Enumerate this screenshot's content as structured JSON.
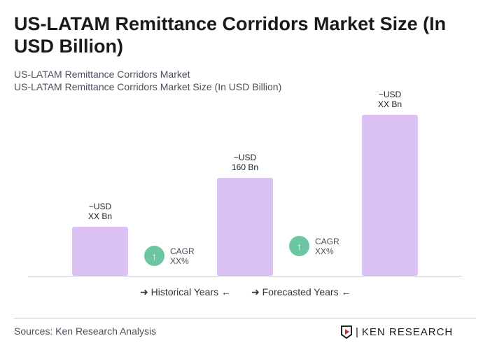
{
  "title": "US-LATAM Remittance Corridors Market Size (In USD Billion)",
  "subtitle1": "US-LATAM Remittance Corridors Market",
  "subtitle2": "US-LATAM Remittance Corridors Market Size (In USD Billion)",
  "chart_data": {
    "type": "bar",
    "categories": [
      "",
      "",
      ""
    ],
    "values": [
      null,
      160,
      null
    ],
    "data_labels": [
      [
        "~USD",
        "XX Bn"
      ],
      [
        "~USD",
        "160 Bn"
      ],
      [
        "~USD",
        "XX Bn"
      ]
    ],
    "cagr": [
      {
        "label": "CAGR",
        "value": "XX%"
      },
      {
        "label": "CAGR",
        "value": "XX%"
      }
    ],
    "legend": [
      "Historical Years",
      "Forecasted Years"
    ],
    "bar_color": "#dcc1f5",
    "cagr_color": "#6dc6a2"
  },
  "sources": "Sources: Ken Research Analysis",
  "logo": "KEN RESEARCH"
}
